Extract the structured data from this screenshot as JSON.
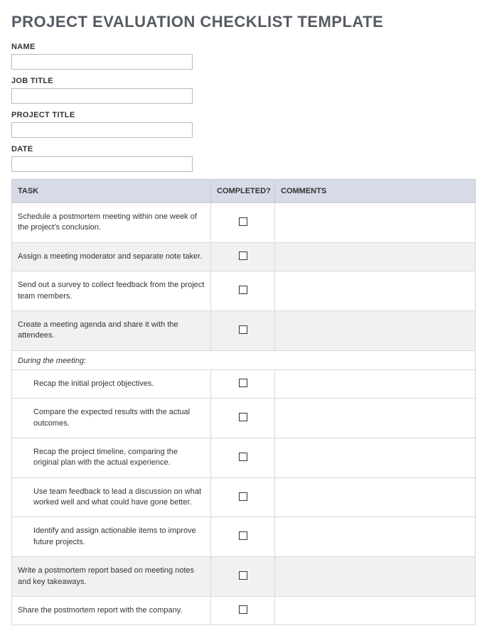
{
  "title": "PROJECT EVALUATION CHECKLIST TEMPLATE",
  "fields": {
    "name": {
      "label": "NAME",
      "value": ""
    },
    "jobTitle": {
      "label": "JOB TITLE",
      "value": ""
    },
    "projectTitle": {
      "label": "PROJECT TITLE",
      "value": ""
    },
    "date": {
      "label": "DATE",
      "value": ""
    }
  },
  "columns": {
    "task": "TASK",
    "completed": "COMPLETED?",
    "comments": "COMMENTS"
  },
  "colors": {
    "header_bg": "#d6dbe7",
    "alt_row_bg": "#f1f1f1",
    "border": "#d8d8d8",
    "title_color": "#555a63"
  },
  "section_label": "During the meeting:",
  "rows": [
    {
      "task": "Schedule a postmortem meeting within one week of the project's conclusion.",
      "alt": false,
      "indented": false
    },
    {
      "task": "Assign a meeting moderator and separate note taker.",
      "alt": true,
      "indented": false
    },
    {
      "task": "Send out a survey to collect feedback from the project team members.",
      "alt": false,
      "indented": false
    },
    {
      "task": "Create a meeting agenda and share it with the attendees.",
      "alt": true,
      "indented": false
    },
    {
      "section": true
    },
    {
      "task": "Recap the initial project objectives.",
      "alt": false,
      "indented": true
    },
    {
      "task": "Compare the expected results with the actual outcomes.",
      "alt": false,
      "indented": true
    },
    {
      "task": "Recap the project timeline, comparing the original plan with the actual experience.",
      "alt": false,
      "indented": true
    },
    {
      "task": "Use team feedback to lead a discussion on what worked well and what could have gone better.",
      "alt": false,
      "indented": true
    },
    {
      "task": "Identify and assign actionable items to improve future projects.",
      "alt": false,
      "indented": true
    },
    {
      "task": "Write a postmortem report based on meeting notes and key takeaways.",
      "alt": true,
      "indented": false
    },
    {
      "task": "Share the postmortem report with the company.",
      "alt": false,
      "indented": false
    }
  ]
}
